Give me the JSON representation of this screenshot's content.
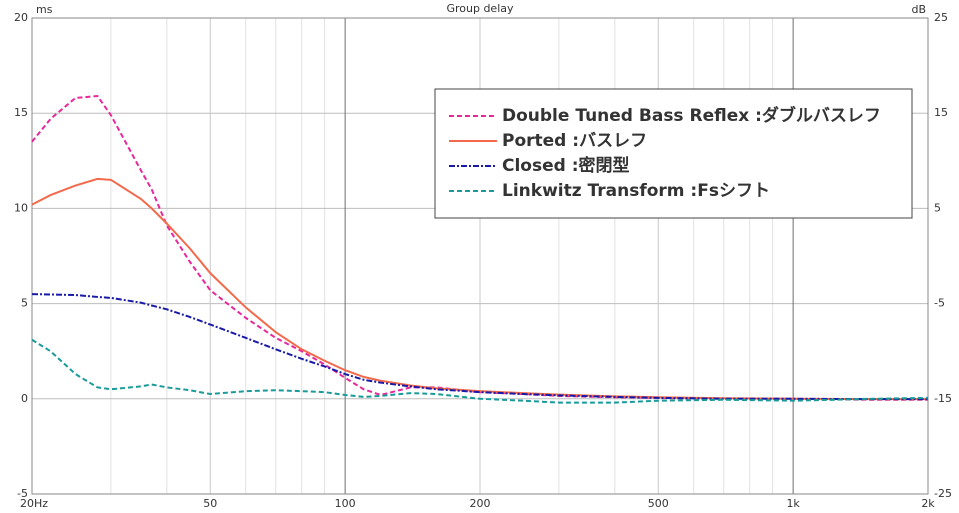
{
  "chart_data": {
    "type": "line",
    "title": "Group delay",
    "ylabel": "ms",
    "y2label": "dB",
    "xscale": "log",
    "xlim": [
      20,
      2000
    ],
    "xticks": [
      {
        "value": 20,
        "label": "20Hz"
      },
      50,
      100,
      200,
      500,
      {
        "value": 1000,
        "label": "1k"
      },
      {
        "value": 2000,
        "label": "2k"
      }
    ],
    "xminorticks": [
      30,
      40,
      60,
      70,
      80,
      90,
      300,
      400,
      600,
      700,
      800,
      900
    ],
    "ylim": [
      -5,
      20
    ],
    "yticks": [
      -5,
      0,
      5,
      10,
      15,
      20
    ],
    "y2lim": [
      -25,
      25
    ],
    "y2ticks": [
      -25,
      -15,
      -5,
      5,
      15,
      25
    ],
    "grid": true,
    "legend": "upper right",
    "x": [
      20,
      22,
      25,
      28,
      30,
      35,
      37,
      40,
      45,
      50,
      60,
      70,
      80,
      90,
      100,
      110,
      120,
      140,
      160,
      200,
      250,
      300,
      400,
      500,
      700,
      1000,
      1500,
      2000
    ],
    "series": [
      {
        "name": "Double Tuned Bass Reflex :ダブルバスレフ",
        "color": "#e8289a",
        "linestyle": "dashed",
        "values": [
          13.5,
          14.7,
          15.8,
          15.9,
          14.9,
          12.0,
          11.0,
          9.1,
          7.2,
          5.7,
          4.25,
          3.2,
          2.5,
          1.8,
          1.1,
          0.5,
          0.2,
          0.6,
          0.6,
          0.35,
          0.25,
          0.15,
          0.08,
          0.05,
          0,
          0,
          -0.05,
          -0.05
        ]
      },
      {
        "name": "Ported :バスレフ",
        "color": "#f26a4b",
        "linestyle": "solid",
        "values": [
          10.2,
          10.7,
          11.2,
          11.55,
          11.5,
          10.5,
          10.0,
          9.2,
          7.9,
          6.6,
          4.8,
          3.5,
          2.6,
          2.0,
          1.5,
          1.15,
          0.95,
          0.7,
          0.55,
          0.4,
          0.3,
          0.22,
          0.13,
          0.08,
          0.03,
          0,
          -0.02,
          -0.02
        ]
      },
      {
        "name": "Closed :密閉型",
        "color": "#1a1aa8",
        "linestyle": "dashdot",
        "values": [
          5.5,
          5.48,
          5.45,
          5.35,
          5.3,
          5.05,
          4.9,
          4.7,
          4.3,
          3.9,
          3.2,
          2.6,
          2.1,
          1.7,
          1.3,
          1.0,
          0.85,
          0.65,
          0.5,
          0.35,
          0.25,
          0.18,
          0.1,
          0.05,
          0,
          0,
          -0.02,
          -0.02
        ]
      },
      {
        "name": "Linkwitz Transform :Fsシフト",
        "color": "#1a9a9a",
        "linestyle": "dashed",
        "values": [
          3.1,
          2.5,
          1.3,
          0.6,
          0.5,
          0.65,
          0.75,
          0.6,
          0.45,
          0.25,
          0.4,
          0.45,
          0.4,
          0.35,
          0.2,
          0.1,
          0.15,
          0.3,
          0.25,
          0,
          -0.1,
          -0.2,
          -0.2,
          -0.1,
          -0.05,
          -0.1,
          0,
          0.05
        ]
      }
    ]
  }
}
